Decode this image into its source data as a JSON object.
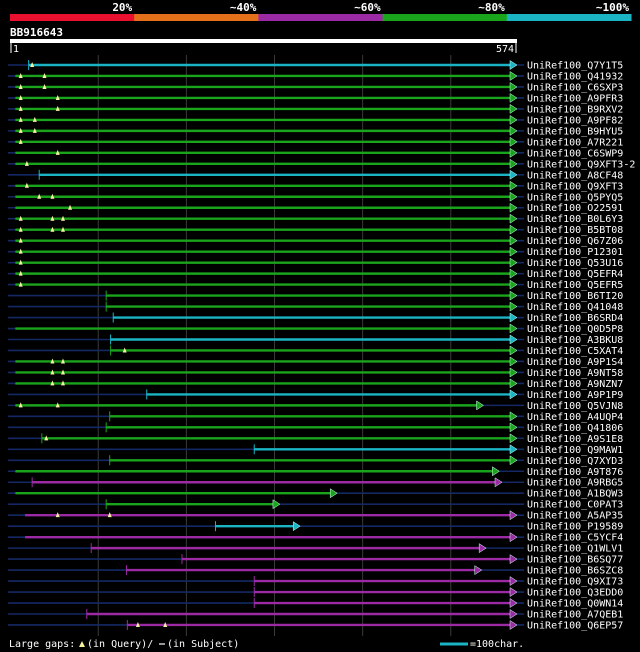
{
  "chart_data": {
    "type": "alignment-overview",
    "query_id": "BB916643",
    "query_length": 574,
    "ruler": {
      "start_label": "1",
      "end_label": "574"
    },
    "color_scale": [
      {
        "label": "20%",
        "color": "#e8102e"
      },
      {
        "label": "~40%",
        "color": "#e4701c"
      },
      {
        "label": "~60%",
        "color": "#9c2aa4"
      },
      {
        "label": "~80%",
        "color": "#1aa41c"
      },
      {
        "label": "~100%",
        "color": "#1ab4c4"
      }
    ],
    "colors": {
      "identity_80": "#1aa41c",
      "identity_100": "#1ab4c4",
      "identity_60": "#9c2aa4",
      "unaligned": "#142864",
      "query_gap_marker": "#f4f4a0",
      "text": "#ffffff",
      "grid": "#3a3a3a"
    },
    "hits": [
      {
        "id": "UniRef100_Q7Y1T5",
        "start": 21,
        "end": 574,
        "color": "cyan",
        "tick": 21,
        "gaps": [
          25
        ]
      },
      {
        "id": "UniRef100_Q41932",
        "start": 6,
        "end": 574,
        "color": "green",
        "tick": null,
        "gaps": [
          12,
          39
        ]
      },
      {
        "id": "UniRef100_C6SXP3",
        "start": 6,
        "end": 574,
        "color": "green",
        "tick": null,
        "gaps": [
          12,
          39
        ]
      },
      {
        "id": "UniRef100_A9PFR3",
        "start": 6,
        "end": 574,
        "color": "green",
        "tick": null,
        "gaps": [
          12,
          54
        ]
      },
      {
        "id": "UniRef100_B9RXV2",
        "start": 6,
        "end": 574,
        "color": "green",
        "tick": null,
        "gaps": [
          12,
          54
        ]
      },
      {
        "id": "UniRef100_A9PF82",
        "start": 6,
        "end": 574,
        "color": "green",
        "tick": null,
        "gaps": [
          12,
          28
        ]
      },
      {
        "id": "UniRef100_B9HYU5",
        "start": 6,
        "end": 574,
        "color": "green",
        "tick": null,
        "gaps": [
          12,
          28
        ]
      },
      {
        "id": "UniRef100_A7R221",
        "start": 6,
        "end": 574,
        "color": "green",
        "tick": null,
        "gaps": [
          12
        ]
      },
      {
        "id": "UniRef100_C6SWP9",
        "start": 6,
        "end": 574,
        "color": "green",
        "tick": null,
        "gaps": [
          54
        ]
      },
      {
        "id": "UniRef100_Q9XFT3-2",
        "start": 6,
        "end": 574,
        "color": "green",
        "tick": null,
        "gaps": [
          19
        ]
      },
      {
        "id": "UniRef100_A8CF48",
        "start": 33,
        "end": 574,
        "color": "cyan",
        "tick": 33,
        "gaps": []
      },
      {
        "id": "UniRef100_Q9XFT3",
        "start": 6,
        "end": 574,
        "color": "green",
        "tick": null,
        "gaps": [
          19
        ]
      },
      {
        "id": "UniRef100_Q5PYQ5",
        "start": 6,
        "end": 574,
        "color": "green",
        "tick": null,
        "gaps": [
          33,
          48
        ]
      },
      {
        "id": "UniRef100_O22591",
        "start": 6,
        "end": 574,
        "color": "green",
        "tick": null,
        "gaps": [
          68
        ]
      },
      {
        "id": "UniRef100_B0L6Y3",
        "start": 6,
        "end": 574,
        "color": "green",
        "tick": null,
        "gaps": [
          12,
          48,
          60
        ]
      },
      {
        "id": "UniRef100_B5BT08",
        "start": 6,
        "end": 574,
        "color": "green",
        "tick": null,
        "gaps": [
          12,
          48,
          60
        ]
      },
      {
        "id": "UniRef100_Q67Z06",
        "start": 6,
        "end": 574,
        "color": "green",
        "tick": null,
        "gaps": [
          12
        ]
      },
      {
        "id": "UniRef100_P12301",
        "start": 6,
        "end": 574,
        "color": "green",
        "tick": null,
        "gaps": [
          12
        ]
      },
      {
        "id": "UniRef100_Q53U16",
        "start": 6,
        "end": 574,
        "color": "green",
        "tick": null,
        "gaps": [
          12
        ]
      },
      {
        "id": "UniRef100_Q5EFR4",
        "start": 6,
        "end": 574,
        "color": "green",
        "tick": null,
        "gaps": [
          12
        ]
      },
      {
        "id": "UniRef100_Q5EFR5",
        "start": 6,
        "end": 574,
        "color": "green",
        "tick": null,
        "gaps": [
          12
        ]
      },
      {
        "id": "UniRef100_B6TI20",
        "start": 109,
        "end": 574,
        "color": "green",
        "tick": 109,
        "gaps": []
      },
      {
        "id": "UniRef100_Q41048",
        "start": 109,
        "end": 574,
        "color": "green",
        "tick": 109,
        "gaps": []
      },
      {
        "id": "UniRef100_B6SRD4",
        "start": 117,
        "end": 574,
        "color": "cyan",
        "tick": 117,
        "gaps": []
      },
      {
        "id": "UniRef100_Q0D5P8",
        "start": 6,
        "end": 574,
        "color": "green",
        "tick": null,
        "gaps": []
      },
      {
        "id": "UniRef100_A3BKU8",
        "start": 114,
        "end": 574,
        "color": "cyan",
        "tick": 114,
        "gaps": []
      },
      {
        "id": "UniRef100_C5XAT4",
        "start": 114,
        "end": 574,
        "color": "green",
        "tick": 114,
        "gaps": [
          130
        ]
      },
      {
        "id": "UniRef100_A9P1S4",
        "start": 6,
        "end": 574,
        "color": "green",
        "tick": null,
        "gaps": [
          48,
          60
        ]
      },
      {
        "id": "UniRef100_A9NT58",
        "start": 6,
        "end": 574,
        "color": "green",
        "tick": null,
        "gaps": [
          48,
          60
        ]
      },
      {
        "id": "UniRef100_A9NZN7",
        "start": 6,
        "end": 574,
        "color": "green",
        "tick": null,
        "gaps": [
          48,
          60
        ]
      },
      {
        "id": "UniRef100_A9P1P9",
        "start": 155,
        "end": 574,
        "color": "cyan",
        "tick": 155,
        "gaps": []
      },
      {
        "id": "UniRef100_Q5VJN8",
        "start": 6,
        "end": 536,
        "color": "green",
        "tick": null,
        "gaps": [
          12,
          54
        ]
      },
      {
        "id": "UniRef100_A4UQP4",
        "start": 113,
        "end": 574,
        "color": "green",
        "tick": 113,
        "gaps": []
      },
      {
        "id": "UniRef100_Q41806",
        "start": 109,
        "end": 574,
        "color": "green",
        "tick": 109,
        "gaps": []
      },
      {
        "id": "UniRef100_A9S1E8",
        "start": 36,
        "end": 574,
        "color": "green",
        "tick": 36,
        "gaps": [
          41
        ]
      },
      {
        "id": "UniRef100_Q9MAW1",
        "start": 277,
        "end": 574,
        "color": "cyan",
        "tick": 277,
        "gaps": []
      },
      {
        "id": "UniRef100_Q7XYD3",
        "start": 113,
        "end": 574,
        "color": "green",
        "tick": 113,
        "gaps": []
      },
      {
        "id": "UniRef100_A9T876",
        "start": 6,
        "end": 554,
        "color": "green",
        "tick": null,
        "gaps": []
      },
      {
        "id": "UniRef100_A9RBG5",
        "start": 25,
        "end": 557,
        "color": "magenta",
        "tick": 25,
        "gaps": []
      },
      {
        "id": "UniRef100_A1BQW3",
        "start": 6,
        "end": 370,
        "color": "green",
        "tick": null,
        "gaps": []
      },
      {
        "id": "UniRef100_C0PAT3",
        "start": 109,
        "end": 305,
        "color": "green",
        "tick": 109,
        "gaps": []
      },
      {
        "id": "UniRef100_A5AP35",
        "start": 17,
        "end": 574,
        "color": "magenta",
        "tick": null,
        "gaps": [
          54,
          113
        ]
      },
      {
        "id": "UniRef100_P19589",
        "start": 233,
        "end": 328,
        "color": "cyan",
        "tick": 233,
        "gaps": []
      },
      {
        "id": "UniRef100_C5YCF4",
        "start": 17,
        "end": 574,
        "color": "magenta",
        "tick": null,
        "gaps": []
      },
      {
        "id": "UniRef100_Q1WLV1",
        "start": 92,
        "end": 539,
        "color": "magenta",
        "tick": 92,
        "gaps": []
      },
      {
        "id": "UniRef100_B6SQ77",
        "start": 195,
        "end": 574,
        "color": "magenta",
        "tick": 195,
        "gaps": []
      },
      {
        "id": "UniRef100_B6SZC8",
        "start": 132,
        "end": 534,
        "color": "magenta",
        "tick": 132,
        "gaps": []
      },
      {
        "id": "UniRef100_Q9XI73",
        "start": 277,
        "end": 574,
        "color": "magenta",
        "tick": 277,
        "gaps": []
      },
      {
        "id": "UniRef100_Q3EDD0",
        "start": 277,
        "end": 574,
        "color": "magenta",
        "tick": 277,
        "gaps": []
      },
      {
        "id": "UniRef100_Q0WN14",
        "start": 277,
        "end": 574,
        "color": "magenta",
        "tick": 277,
        "gaps": []
      },
      {
        "id": "UniRef100_A7QEB1",
        "start": 87,
        "end": 574,
        "color": "magenta",
        "tick": 87,
        "gaps": []
      },
      {
        "id": "UniRef100_Q6EP57",
        "start": 133,
        "end": 574,
        "color": "magenta",
        "tick": 133,
        "gaps": [
          145,
          176
        ]
      }
    ],
    "legend": {
      "large_gaps_label": "Large gaps:",
      "query_gap_text": "(in Query)/",
      "subject_gap_text": "(in Subject)",
      "scale_label": "=100char."
    }
  }
}
